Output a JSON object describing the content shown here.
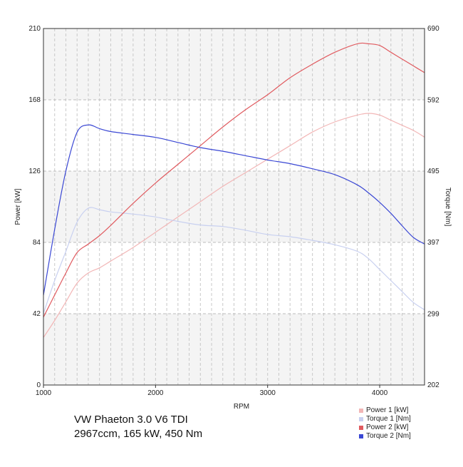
{
  "chart_data": {
    "type": "line",
    "title": "",
    "xlabel": "RPM",
    "ylabel_left": "Power [kW]",
    "ylabel_right": "Torque [Nm]",
    "xlim": [
      1000,
      4400
    ],
    "x_ticks": [
      1000,
      2000,
      3000,
      4000
    ],
    "ylim_left": [
      0,
      210
    ],
    "y_ticks_left": [
      0,
      42,
      84,
      126,
      168,
      210
    ],
    "ylim_right": [
      202,
      690
    ],
    "y_ticks_right": [
      202,
      299,
      397,
      495,
      592,
      690
    ],
    "grid": true,
    "legend_position": "bottom-right",
    "x": [
      1000,
      1100,
      1200,
      1300,
      1400,
      1500,
      1600,
      1800,
      2000,
      2200,
      2400,
      2600,
      2800,
      3000,
      3200,
      3400,
      3600,
      3800,
      3900,
      4000,
      4100,
      4200,
      4300,
      4400
    ],
    "series": [
      {
        "name": "Power 1 [kW]",
        "axis": "left",
        "color": "#f2b6b6",
        "values": [
          28,
          38,
          49,
          60,
          66,
          69,
          73,
          81,
          90,
          99,
          108,
          117,
          125,
          133,
          141,
          149,
          155,
          159,
          160,
          159,
          156,
          153,
          150,
          146
        ]
      },
      {
        "name": "Torque 1 [Nm]",
        "axis": "right",
        "color": "#c8d0f0",
        "values": [
          300,
          345,
          385,
          425,
          444,
          442,
          439,
          436,
          432,
          426,
          421,
          419,
          414,
          408,
          405,
          400,
          394,
          385,
          375,
          360,
          345,
          330,
          315,
          305
        ]
      },
      {
        "name": "Power 2 [kW]",
        "axis": "left",
        "color": "#e05a5f",
        "values": [
          40,
          53,
          66,
          78,
          83,
          88,
          94,
          107,
          119,
          130,
          141,
          152,
          162,
          171,
          181,
          189,
          196,
          201,
          201,
          200,
          196,
          192,
          188,
          184
        ]
      },
      {
        "name": "Torque 2 [Nm]",
        "axis": "right",
        "color": "#3a47d4",
        "values": [
          325,
          415,
          495,
          548,
          558,
          553,
          549,
          545,
          541,
          534,
          527,
          522,
          516,
          510,
          505,
          498,
          490,
          476,
          465,
          452,
          437,
          420,
          404,
          395
        ]
      }
    ]
  },
  "caption": {
    "line1": "VW Phaeton 3.0 V6 TDI",
    "line2": "2967ccm, 165 kW, 450 Nm"
  }
}
